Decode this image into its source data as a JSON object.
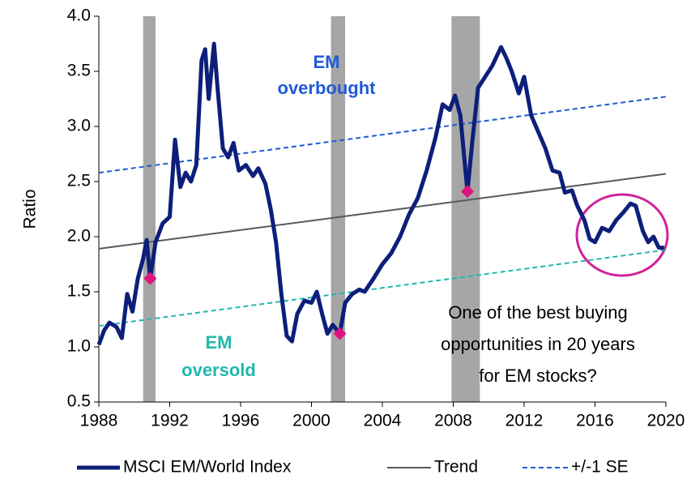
{
  "chart_data": {
    "type": "line",
    "y_label": "Ratio",
    "xlim": [
      1988,
      2020
    ],
    "xticks": [
      1988,
      1992,
      1996,
      2000,
      2004,
      2008,
      2012,
      2016,
      2020
    ],
    "ylim": [
      0.5,
      4.0
    ],
    "yticks": [
      {
        "value": 0.5,
        "label": "0.5"
      },
      {
        "value": 1.0,
        "label": "1.0"
      },
      {
        "value": 1.5,
        "label": "1.5"
      },
      {
        "value": 2.0,
        "label": "2.0"
      },
      {
        "value": 2.5,
        "label": "2.5"
      },
      {
        "value": 3.0,
        "label": "3.0"
      },
      {
        "value": 3.5,
        "label": "3.5"
      },
      {
        "value": 4.0,
        "label": "4.0"
      }
    ],
    "grid": false,
    "shaded_periods": [
      [
        1990.5,
        1991.2
      ],
      [
        2001.1,
        2001.9
      ],
      [
        2007.9,
        2009.5
      ]
    ],
    "shade_color": "#a6a6a6",
    "series": [
      {
        "name": "MSCI EM/World Index",
        "color": "#0d1f7a",
        "width": 5,
        "dashed": false,
        "x": [
          1988.0,
          1988.3,
          1988.6,
          1989.0,
          1989.3,
          1989.6,
          1989.9,
          1990.2,
          1990.5,
          1990.7,
          1990.9,
          1991.2,
          1991.6,
          1992.0,
          1992.3,
          1992.6,
          1992.9,
          1993.2,
          1993.5,
          1993.8,
          1994.0,
          1994.2,
          1994.5,
          1994.7,
          1995.0,
          1995.3,
          1995.6,
          1995.9,
          1996.3,
          1996.7,
          1997.0,
          1997.4,
          1997.7,
          1998.0,
          1998.3,
          1998.6,
          1998.9,
          1999.2,
          1999.6,
          2000.0,
          2000.3,
          2000.6,
          2000.9,
          2001.2,
          2001.6,
          2001.9,
          2002.3,
          2002.7,
          2003.0,
          2003.5,
          2004.0,
          2004.5,
          2005.0,
          2005.5,
          2006.0,
          2006.5,
          2007.0,
          2007.4,
          2007.8,
          2008.1,
          2008.4,
          2008.8,
          2009.1,
          2009.4,
          2009.8,
          2010.2,
          2010.7,
          2011.0,
          2011.3,
          2011.7,
          2012.0,
          2012.4,
          2012.8,
          2013.2,
          2013.6,
          2014.0,
          2014.3,
          2014.7,
          2015.0,
          2015.4,
          2015.7,
          2016.0,
          2016.4,
          2016.8,
          2017.2,
          2017.6,
          2018.0,
          2018.3,
          2018.7,
          2019.0,
          2019.3,
          2019.6,
          2019.9
        ],
        "values": [
          1.02,
          1.15,
          1.22,
          1.18,
          1.08,
          1.48,
          1.32,
          1.62,
          1.8,
          1.97,
          1.62,
          1.95,
          2.12,
          2.18,
          2.88,
          2.45,
          2.58,
          2.5,
          2.65,
          3.6,
          3.7,
          3.25,
          3.75,
          3.35,
          2.8,
          2.72,
          2.85,
          2.6,
          2.65,
          2.55,
          2.62,
          2.48,
          2.25,
          1.95,
          1.48,
          1.1,
          1.05,
          1.3,
          1.42,
          1.4,
          1.5,
          1.3,
          1.12,
          1.2,
          1.12,
          1.4,
          1.48,
          1.52,
          1.5,
          1.62,
          1.75,
          1.85,
          2.0,
          2.2,
          2.35,
          2.6,
          2.9,
          3.2,
          3.15,
          3.28,
          3.1,
          2.41,
          2.9,
          3.35,
          3.45,
          3.55,
          3.72,
          3.62,
          3.5,
          3.3,
          3.45,
          3.1,
          2.95,
          2.8,
          2.6,
          2.58,
          2.4,
          2.42,
          2.28,
          2.15,
          1.98,
          1.95,
          2.08,
          2.05,
          2.15,
          2.22,
          2.3,
          2.28,
          2.05,
          1.95,
          2.0,
          1.9,
          1.9
        ]
      },
      {
        "name": "Trend",
        "color": "#595959",
        "width": 2,
        "dashed": false,
        "x": [
          1988,
          2020
        ],
        "values": [
          1.89,
          2.57
        ]
      },
      {
        "name": "+/-1 SE",
        "color": "#1f5ad6",
        "width": 2,
        "dashed": true,
        "x": [
          1988,
          2020
        ],
        "values": [
          2.58,
          3.27
        ]
      },
      {
        "color": "#20b8ae",
        "width": 2,
        "dashed": true,
        "x": [
          1988,
          2020
        ],
        "values": [
          1.19,
          1.88
        ]
      }
    ],
    "markers": {
      "color": "#e0147f",
      "x": [
        1990.9,
        2001.6,
        2008.8
      ],
      "values": [
        1.62,
        1.12,
        2.41
      ]
    },
    "annotations": [
      {
        "lines": [
          "EM",
          "overbought"
        ],
        "color": "#1f5ad6",
        "bold": true
      },
      {
        "lines": [
          "EM",
          "oversold"
        ],
        "color": "#20b8ae",
        "bold": true
      },
      {
        "lines": [
          "One of the best buying",
          "opportunities in 20 years",
          "for EM stocks?"
        ],
        "color": "#000000",
        "bold": false
      }
    ]
  }
}
